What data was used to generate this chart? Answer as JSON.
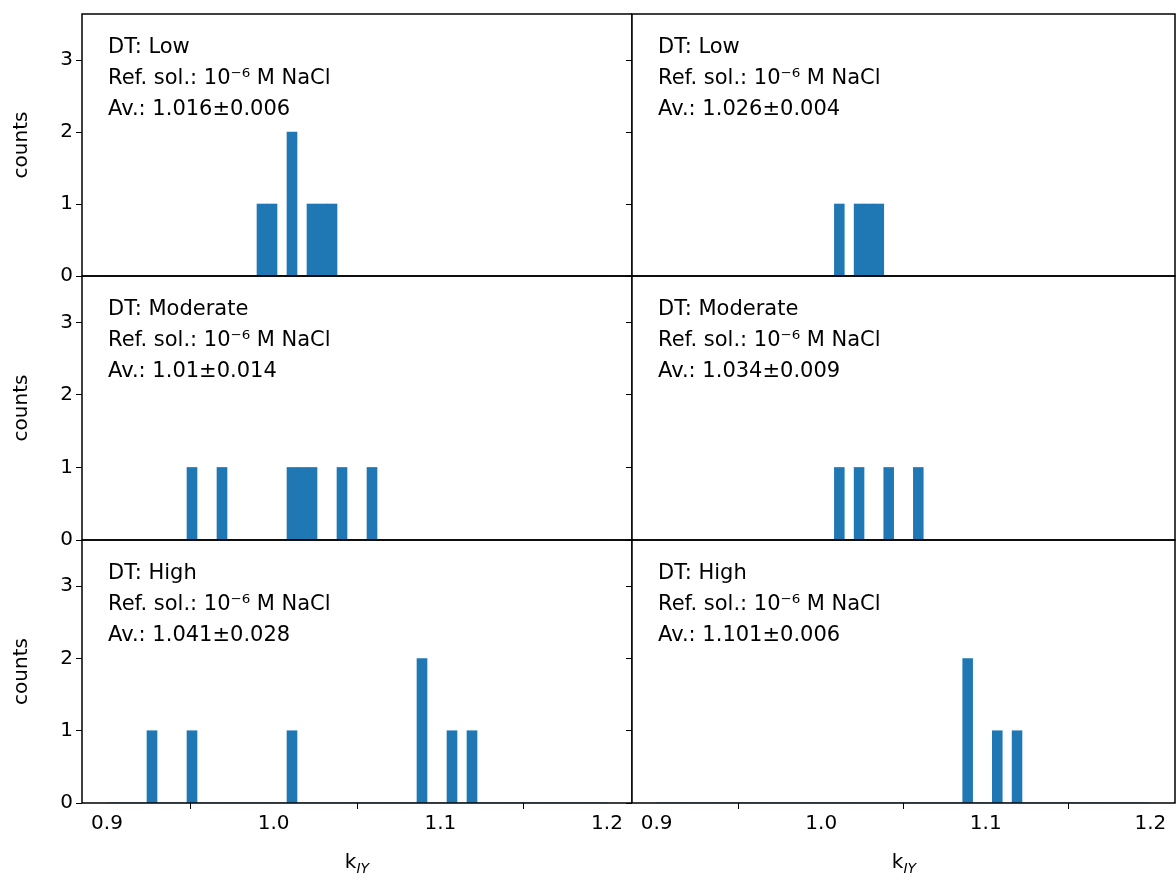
{
  "chart_data": [
    {
      "type": "histogram",
      "bins": [
        0.9,
        0.906,
        0.912,
        0.918,
        0.924,
        0.93,
        0.936,
        0.942,
        0.948,
        0.954,
        0.96,
        0.966,
        0.972,
        0.978,
        0.984,
        0.99,
        0.996,
        1.002,
        1.008,
        1.014,
        1.02,
        1.026,
        1.032,
        1.038,
        1.044,
        1.05,
        1.056,
        1.062,
        1.068,
        1.074,
        1.08,
        1.086,
        1.092,
        1.098,
        1.104,
        1.11,
        1.116,
        1.122,
        1.128,
        1.134,
        1.14,
        1.146,
        1.152,
        1.158,
        1.164,
        1.17,
        1.176,
        1.182,
        1.188,
        1.194,
        1.2
      ],
      "values": [
        0,
        0,
        0,
        0,
        0,
        0,
        0,
        0,
        0,
        0,
        0,
        0,
        0,
        0,
        0,
        1,
        1,
        0,
        2,
        0,
        1,
        1,
        1,
        0,
        0,
        0,
        0,
        0,
        0,
        0,
        0,
        0,
        0,
        0,
        0,
        0,
        0,
        0,
        0,
        0,
        0,
        0,
        0,
        0,
        0,
        0,
        0,
        0,
        0,
        0
      ],
      "color": "#1f77b4",
      "ylabel": "counts",
      "xlim": [
        0.885,
        1.215
      ],
      "ylim": [
        0,
        3.64
      ],
      "yticks": [
        0,
        1,
        2,
        3
      ],
      "tick_labels": "y",
      "annotations": [
        "DT: Low",
        "Ref. sol.: 10⁻⁶ M NaCl",
        "Av.: 1.016±0.006"
      ]
    },
    {
      "type": "histogram",
      "bins": [
        0.9,
        0.906,
        0.912,
        0.918,
        0.924,
        0.93,
        0.936,
        0.942,
        0.948,
        0.954,
        0.96,
        0.966,
        0.972,
        0.978,
        0.984,
        0.99,
        0.996,
        1.002,
        1.008,
        1.014,
        1.02,
        1.026,
        1.032,
        1.038,
        1.044,
        1.05,
        1.056,
        1.062,
        1.068,
        1.074,
        1.08,
        1.086,
        1.092,
        1.098,
        1.104,
        1.11,
        1.116,
        1.122,
        1.128,
        1.134,
        1.14,
        1.146,
        1.152,
        1.158,
        1.164,
        1.17,
        1.176,
        1.182,
        1.188,
        1.194,
        1.2
      ],
      "values": [
        0,
        0,
        0,
        0,
        0,
        0,
        0,
        0,
        0,
        0,
        0,
        0,
        0,
        0,
        0,
        0,
        0,
        0,
        1,
        0,
        1,
        1,
        1,
        0,
        0,
        0,
        0,
        0,
        0,
        0,
        0,
        0,
        0,
        0,
        0,
        0,
        0,
        0,
        0,
        0,
        0,
        0,
        0,
        0,
        0,
        0,
        0,
        0,
        0,
        0
      ],
      "color": "#1f77b4",
      "xlim": [
        0.885,
        1.215
      ],
      "ylim": [
        0,
        3.64
      ],
      "yticks": [
        0,
        1,
        2,
        3
      ],
      "tick_labels": false,
      "annotations": [
        "DT: Low",
        "Ref. sol.: 10⁻⁶ M NaCl",
        "Av.: 1.026±0.004"
      ]
    },
    {
      "type": "histogram",
      "bins": [
        0.9,
        0.906,
        0.912,
        0.918,
        0.924,
        0.93,
        0.936,
        0.942,
        0.948,
        0.954,
        0.96,
        0.966,
        0.972,
        0.978,
        0.984,
        0.99,
        0.996,
        1.002,
        1.008,
        1.014,
        1.02,
        1.026,
        1.032,
        1.038,
        1.044,
        1.05,
        1.056,
        1.062,
        1.068,
        1.074,
        1.08,
        1.086,
        1.092,
        1.098,
        1.104,
        1.11,
        1.116,
        1.122,
        1.128,
        1.134,
        1.14,
        1.146,
        1.152,
        1.158,
        1.164,
        1.17,
        1.176,
        1.182,
        1.188,
        1.194,
        1.2
      ],
      "values": [
        0,
        0,
        0,
        0,
        0,
        0,
        0,
        0,
        1,
        0,
        0,
        1,
        0,
        0,
        0,
        0,
        0,
        0,
        1,
        1,
        1,
        0,
        0,
        1,
        0,
        0,
        1,
        0,
        0,
        0,
        0,
        0,
        0,
        0,
        0,
        0,
        0,
        0,
        0,
        0,
        0,
        0,
        0,
        0,
        0,
        0,
        0,
        0,
        0,
        0
      ],
      "color": "#1f77b4",
      "ylabel": "counts",
      "xlim": [
        0.885,
        1.215
      ],
      "ylim": [
        0,
        3.64
      ],
      "yticks": [
        0,
        1,
        2,
        3
      ],
      "tick_labels": "y",
      "annotations": [
        "DT: Moderate",
        "Ref. sol.: 10⁻⁶ M NaCl",
        "Av.: 1.01±0.014"
      ]
    },
    {
      "type": "histogram",
      "bins": [
        0.9,
        0.906,
        0.912,
        0.918,
        0.924,
        0.93,
        0.936,
        0.942,
        0.948,
        0.954,
        0.96,
        0.966,
        0.972,
        0.978,
        0.984,
        0.99,
        0.996,
        1.002,
        1.008,
        1.014,
        1.02,
        1.026,
        1.032,
        1.038,
        1.044,
        1.05,
        1.056,
        1.062,
        1.068,
        1.074,
        1.08,
        1.086,
        1.092,
        1.098,
        1.104,
        1.11,
        1.116,
        1.122,
        1.128,
        1.134,
        1.14,
        1.146,
        1.152,
        1.158,
        1.164,
        1.17,
        1.176,
        1.182,
        1.188,
        1.194,
        1.2
      ],
      "values": [
        0,
        0,
        0,
        0,
        0,
        0,
        0,
        0,
        0,
        0,
        0,
        0,
        0,
        0,
        0,
        0,
        0,
        0,
        1,
        0,
        1,
        0,
        0,
        1,
        0,
        0,
        1,
        0,
        0,
        0,
        0,
        0,
        0,
        0,
        0,
        0,
        0,
        0,
        0,
        0,
        0,
        0,
        0,
        0,
        0,
        0,
        0,
        0,
        0,
        0
      ],
      "color": "#1f77b4",
      "xlim": [
        0.885,
        1.215
      ],
      "ylim": [
        0,
        3.64
      ],
      "yticks": [
        0,
        1,
        2,
        3
      ],
      "tick_labels": false,
      "annotations": [
        "DT: Moderate",
        "Ref. sol.: 10⁻⁶ M NaCl",
        "Av.: 1.034±0.009"
      ]
    },
    {
      "type": "histogram",
      "bins": [
        0.9,
        0.906,
        0.912,
        0.918,
        0.924,
        0.93,
        0.936,
        0.942,
        0.948,
        0.954,
        0.96,
        0.966,
        0.972,
        0.978,
        0.984,
        0.99,
        0.996,
        1.002,
        1.008,
        1.014,
        1.02,
        1.026,
        1.032,
        1.038,
        1.044,
        1.05,
        1.056,
        1.062,
        1.068,
        1.074,
        1.08,
        1.086,
        1.092,
        1.098,
        1.104,
        1.11,
        1.116,
        1.122,
        1.128,
        1.134,
        1.14,
        1.146,
        1.152,
        1.158,
        1.164,
        1.17,
        1.176,
        1.182,
        1.188,
        1.194,
        1.2
      ],
      "values": [
        0,
        0,
        0,
        0,
        1,
        0,
        0,
        0,
        1,
        0,
        0,
        0,
        0,
        0,
        0,
        0,
        0,
        0,
        1,
        0,
        0,
        0,
        0,
        0,
        0,
        0,
        0,
        0,
        0,
        0,
        0,
        2,
        0,
        0,
        1,
        0,
        1,
        0,
        0,
        0,
        0,
        0,
        0,
        0,
        0,
        0,
        0,
        0,
        0,
        0
      ],
      "color": "#1f77b4",
      "ylabel": "counts",
      "xlabel": "k$_{IY}$",
      "xlim": [
        0.885,
        1.215
      ],
      "xticks": [
        0.9,
        {
          "value": 1,
          "label": "1.0"
        },
        1.1,
        1.2
      ],
      "ylim": [
        0,
        3.64
      ],
      "yticks": [
        0,
        1,
        2,
        3
      ],
      "annotations": [
        "DT: High",
        "Ref. sol.: 10⁻⁶ M NaCl",
        "Av.: 1.041±0.028"
      ]
    },
    {
      "type": "histogram",
      "bins": [
        0.9,
        0.906,
        0.912,
        0.918,
        0.924,
        0.93,
        0.936,
        0.942,
        0.948,
        0.954,
        0.96,
        0.966,
        0.972,
        0.978,
        0.984,
        0.99,
        0.996,
        1.002,
        1.008,
        1.014,
        1.02,
        1.026,
        1.032,
        1.038,
        1.044,
        1.05,
        1.056,
        1.062,
        1.068,
        1.074,
        1.08,
        1.086,
        1.092,
        1.098,
        1.104,
        1.11,
        1.116,
        1.122,
        1.128,
        1.134,
        1.14,
        1.146,
        1.152,
        1.158,
        1.164,
        1.17,
        1.176,
        1.182,
        1.188,
        1.194,
        1.2
      ],
      "values": [
        0,
        0,
        0,
        0,
        0,
        0,
        0,
        0,
        0,
        0,
        0,
        0,
        0,
        0,
        0,
        0,
        0,
        0,
        0,
        0,
        0,
        0,
        0,
        0,
        0,
        0,
        0,
        0,
        0,
        0,
        0,
        2,
        0,
        0,
        1,
        0,
        1,
        0,
        0,
        0,
        0,
        0,
        0,
        0,
        0,
        0,
        0,
        0,
        0,
        0
      ],
      "color": "#1f77b4",
      "xlabel": "k$_{IY}$",
      "xlim": [
        0.885,
        1.215
      ],
      "xticks": [
        0.9,
        {
          "value": 1,
          "label": "1.0"
        },
        1.1,
        1.2
      ],
      "ylim": [
        0,
        3.64
      ],
      "yticks": [
        0,
        1,
        2,
        3
      ],
      "tick_labels": "x",
      "annotations": [
        "DT: High",
        "Ref. sol.: 10⁻⁶ M NaCl",
        "Av.: 1.101±0.006"
      ]
    }
  ]
}
